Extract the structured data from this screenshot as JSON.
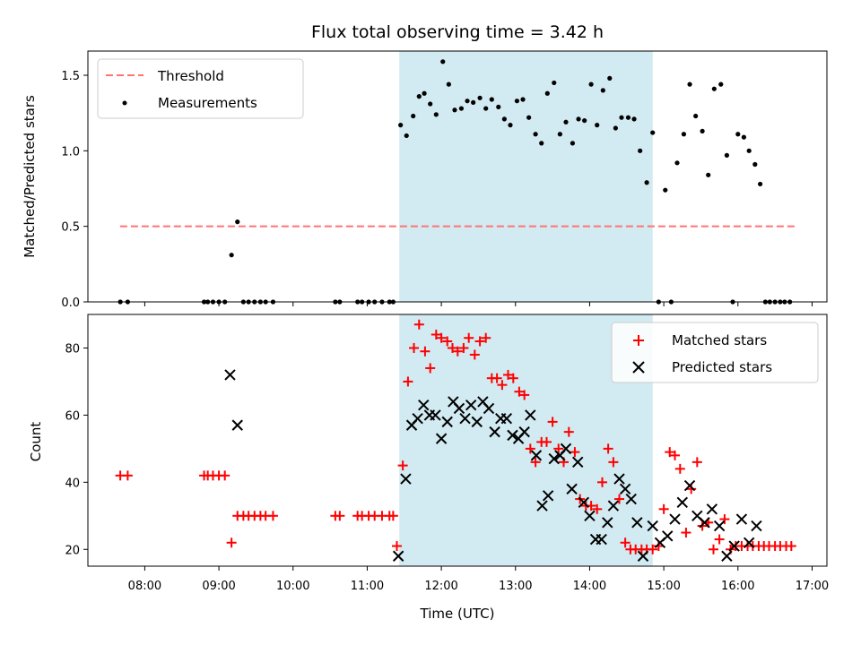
{
  "chart_data": [
    {
      "type": "scatter",
      "title": "Flux total observing time = 3.42 h",
      "xlabel": "",
      "ylabel": "Matched/Predicted stars",
      "xlim": [
        7.233,
        17.2
      ],
      "ylim": [
        0,
        1.66
      ],
      "yticks": [
        0.0,
        0.5,
        1.0,
        1.5
      ],
      "ytick_labels": [
        "0.0",
        "0.5",
        "1.0",
        "1.5"
      ],
      "shaded_region": [
        11.433,
        14.85
      ],
      "colors": {
        "threshold": "#ff7373",
        "measurements": "#000000",
        "shade": "#add8e6"
      },
      "legend": {
        "position": "upper-left",
        "entries": [
          "Threshold",
          "Measurements"
        ]
      },
      "threshold": {
        "name": "Threshold",
        "value": 0.5,
        "x_range": [
          7.667,
          16.767
        ]
      },
      "series": [
        {
          "name": "Measurements",
          "points": [
            [
              7.67,
              0
            ],
            [
              7.77,
              0
            ],
            [
              8.8,
              0
            ],
            [
              8.85,
              0
            ],
            [
              8.92,
              0
            ],
            [
              9.0,
              0
            ],
            [
              9.08,
              0
            ],
            [
              9.17,
              0.31
            ],
            [
              9.25,
              0.53
            ],
            [
              9.33,
              0
            ],
            [
              9.4,
              0
            ],
            [
              9.48,
              0
            ],
            [
              9.56,
              0
            ],
            [
              9.63,
              0
            ],
            [
              9.73,
              0
            ],
            [
              10.57,
              0
            ],
            [
              10.63,
              0
            ],
            [
              10.87,
              0
            ],
            [
              10.93,
              0
            ],
            [
              11.02,
              0
            ],
            [
              11.1,
              0
            ],
            [
              11.2,
              0
            ],
            [
              11.3,
              0
            ],
            [
              11.35,
              0
            ],
            [
              11.45,
              1.17
            ],
            [
              11.53,
              1.1
            ],
            [
              11.62,
              1.23
            ],
            [
              11.7,
              1.36
            ],
            [
              11.77,
              1.38
            ],
            [
              11.85,
              1.31
            ],
            [
              11.93,
              1.24
            ],
            [
              12.02,
              1.59
            ],
            [
              12.1,
              1.44
            ],
            [
              12.18,
              1.27
            ],
            [
              12.27,
              1.28
            ],
            [
              12.35,
              1.33
            ],
            [
              12.43,
              1.32
            ],
            [
              12.52,
              1.35
            ],
            [
              12.6,
              1.28
            ],
            [
              12.68,
              1.34
            ],
            [
              12.77,
              1.29
            ],
            [
              12.85,
              1.21
            ],
            [
              12.93,
              1.17
            ],
            [
              13.02,
              1.33
            ],
            [
              13.1,
              1.34
            ],
            [
              13.18,
              1.22
            ],
            [
              13.27,
              1.11
            ],
            [
              13.35,
              1.05
            ],
            [
              13.43,
              1.38
            ],
            [
              13.52,
              1.45
            ],
            [
              13.6,
              1.11
            ],
            [
              13.68,
              1.19
            ],
            [
              13.77,
              1.05
            ],
            [
              13.85,
              1.21
            ],
            [
              13.93,
              1.2
            ],
            [
              14.02,
              1.44
            ],
            [
              14.1,
              1.17
            ],
            [
              14.18,
              1.4
            ],
            [
              14.27,
              1.48
            ],
            [
              14.35,
              1.15
            ],
            [
              14.43,
              1.22
            ],
            [
              14.52,
              1.22
            ],
            [
              14.6,
              1.21
            ],
            [
              14.68,
              1.0
            ],
            [
              14.77,
              0.79
            ],
            [
              14.85,
              1.12
            ],
            [
              14.93,
              0
            ],
            [
              15.02,
              0.74
            ],
            [
              15.1,
              0
            ],
            [
              15.18,
              0.92
            ],
            [
              15.27,
              1.11
            ],
            [
              15.35,
              1.44
            ],
            [
              15.43,
              1.23
            ],
            [
              15.52,
              1.13
            ],
            [
              15.6,
              0.84
            ],
            [
              15.68,
              1.41
            ],
            [
              15.77,
              1.44
            ],
            [
              15.85,
              0.97
            ],
            [
              15.93,
              0
            ],
            [
              16.0,
              1.11
            ],
            [
              16.08,
              1.09
            ],
            [
              16.15,
              1.0
            ],
            [
              16.23,
              0.91
            ],
            [
              16.3,
              0.78
            ],
            [
              16.37,
              0
            ],
            [
              16.43,
              0
            ],
            [
              16.5,
              0
            ],
            [
              16.57,
              0
            ],
            [
              16.63,
              0
            ],
            [
              16.7,
              0
            ]
          ]
        }
      ]
    },
    {
      "type": "scatter",
      "title": "",
      "xlabel": "Time (UTC)",
      "ylabel": "Count",
      "xlim": [
        7.233,
        17.2
      ],
      "ylim": [
        15,
        90
      ],
      "yticks": [
        20,
        40,
        60,
        80
      ],
      "ytick_labels": [
        "20",
        "40",
        "60",
        "80"
      ],
      "xticks": [
        8,
        9,
        10,
        11,
        12,
        13,
        14,
        15,
        16,
        17
      ],
      "xtick_labels": [
        "08:00",
        "09:00",
        "10:00",
        "11:00",
        "12:00",
        "13:00",
        "14:00",
        "15:00",
        "16:00",
        "17:00"
      ],
      "shaded_region": [
        11.433,
        14.85
      ],
      "colors": {
        "matched": "#ff0000",
        "predicted": "#000000",
        "shade": "#add8e6"
      },
      "legend": {
        "position": "upper-right",
        "entries": [
          "Matched stars",
          "Predicted stars"
        ]
      },
      "series": [
        {
          "name": "Matched stars",
          "marker": "plus",
          "points": [
            [
              7.67,
              42
            ],
            [
              7.77,
              42
            ],
            [
              8.8,
              42
            ],
            [
              8.85,
              42
            ],
            [
              8.92,
              42
            ],
            [
              9.0,
              42
            ],
            [
              9.08,
              42
            ],
            [
              9.17,
              22
            ],
            [
              9.25,
              30
            ],
            [
              9.33,
              30
            ],
            [
              9.4,
              30
            ],
            [
              9.48,
              30
            ],
            [
              9.56,
              30
            ],
            [
              9.63,
              30
            ],
            [
              9.73,
              30
            ],
            [
              10.57,
              30
            ],
            [
              10.63,
              30
            ],
            [
              10.87,
              30
            ],
            [
              10.93,
              30
            ],
            [
              11.02,
              30
            ],
            [
              11.1,
              30
            ],
            [
              11.2,
              30
            ],
            [
              11.3,
              30
            ],
            [
              11.35,
              30
            ],
            [
              11.4,
              21
            ],
            [
              11.48,
              45
            ],
            [
              11.55,
              70
            ],
            [
              11.63,
              80
            ],
            [
              11.7,
              87
            ],
            [
              11.78,
              79
            ],
            [
              11.85,
              74
            ],
            [
              11.93,
              84
            ],
            [
              12.0,
              83
            ],
            [
              12.08,
              82
            ],
            [
              12.15,
              80
            ],
            [
              12.22,
              79
            ],
            [
              12.3,
              80
            ],
            [
              12.37,
              83
            ],
            [
              12.45,
              78
            ],
            [
              12.52,
              82
            ],
            [
              12.6,
              83
            ],
            [
              12.68,
              71
            ],
            [
              12.75,
              71
            ],
            [
              12.82,
              69
            ],
            [
              12.9,
              72
            ],
            [
              12.97,
              71
            ],
            [
              13.05,
              67
            ],
            [
              13.12,
              66
            ],
            [
              13.2,
              50
            ],
            [
              13.27,
              46
            ],
            [
              13.35,
              52
            ],
            [
              13.42,
              52
            ],
            [
              13.5,
              58
            ],
            [
              13.58,
              50
            ],
            [
              13.65,
              46
            ],
            [
              13.72,
              55
            ],
            [
              13.8,
              49
            ],
            [
              13.87,
              35
            ],
            [
              13.95,
              33
            ],
            [
              14.02,
              33
            ],
            [
              14.1,
              32
            ],
            [
              14.17,
              40
            ],
            [
              14.25,
              50
            ],
            [
              14.32,
              46
            ],
            [
              14.4,
              35
            ],
            [
              14.48,
              22
            ],
            [
              14.55,
              20
            ],
            [
              14.62,
              20
            ],
            [
              14.7,
              20
            ],
            [
              14.77,
              20
            ],
            [
              14.85,
              20
            ],
            [
              14.93,
              21
            ],
            [
              15.0,
              32
            ],
            [
              15.08,
              49
            ],
            [
              15.15,
              48
            ],
            [
              15.22,
              44
            ],
            [
              15.3,
              25
            ],
            [
              15.37,
              38
            ],
            [
              15.45,
              46
            ],
            [
              15.52,
              27
            ],
            [
              15.6,
              28
            ],
            [
              15.67,
              20
            ],
            [
              15.75,
              23
            ],
            [
              15.82,
              29
            ],
            [
              15.9,
              20
            ],
            [
              15.97,
              21
            ],
            [
              16.05,
              21
            ],
            [
              16.13,
              21
            ],
            [
              16.2,
              21
            ],
            [
              16.28,
              21
            ],
            [
              16.35,
              21
            ],
            [
              16.42,
              21
            ],
            [
              16.5,
              21
            ],
            [
              16.57,
              21
            ],
            [
              16.65,
              21
            ],
            [
              16.72,
              21
            ]
          ]
        },
        {
          "name": "Predicted stars",
          "marker": "cross",
          "points": [
            [
              9.15,
              72
            ],
            [
              9.25,
              57
            ],
            [
              11.42,
              18
            ],
            [
              11.52,
              41
            ],
            [
              11.6,
              57
            ],
            [
              11.68,
              59
            ],
            [
              11.76,
              63
            ],
            [
              11.84,
              60
            ],
            [
              11.92,
              60
            ],
            [
              12.0,
              53
            ],
            [
              12.08,
              58
            ],
            [
              12.16,
              64
            ],
            [
              12.24,
              62
            ],
            [
              12.32,
              59
            ],
            [
              12.4,
              63
            ],
            [
              12.48,
              58
            ],
            [
              12.56,
              64
            ],
            [
              12.64,
              62
            ],
            [
              12.72,
              55
            ],
            [
              12.8,
              59
            ],
            [
              12.88,
              59
            ],
            [
              12.96,
              54
            ],
            [
              13.04,
              53
            ],
            [
              13.12,
              55
            ],
            [
              13.2,
              60
            ],
            [
              13.28,
              48
            ],
            [
              13.36,
              33
            ],
            [
              13.44,
              36
            ],
            [
              13.52,
              47
            ],
            [
              13.6,
              48
            ],
            [
              13.68,
              50
            ],
            [
              13.76,
              38
            ],
            [
              13.84,
              46
            ],
            [
              13.92,
              34
            ],
            [
              14.0,
              30
            ],
            [
              14.08,
              23
            ],
            [
              14.16,
              23
            ],
            [
              14.24,
              28
            ],
            [
              14.32,
              33
            ],
            [
              14.4,
              41
            ],
            [
              14.48,
              38
            ],
            [
              14.56,
              35
            ],
            [
              14.64,
              28
            ],
            [
              14.72,
              18
            ],
            [
              14.85,
              27
            ],
            [
              14.95,
              22
            ],
            [
              15.05,
              24
            ],
            [
              15.15,
              29
            ],
            [
              15.25,
              34
            ],
            [
              15.35,
              39
            ],
            [
              15.45,
              30
            ],
            [
              15.55,
              28
            ],
            [
              15.65,
              32
            ],
            [
              15.75,
              27
            ],
            [
              15.85,
              18
            ],
            [
              15.95,
              21
            ],
            [
              16.05,
              29
            ],
            [
              16.15,
              22
            ],
            [
              16.25,
              27
            ]
          ]
        }
      ]
    }
  ]
}
